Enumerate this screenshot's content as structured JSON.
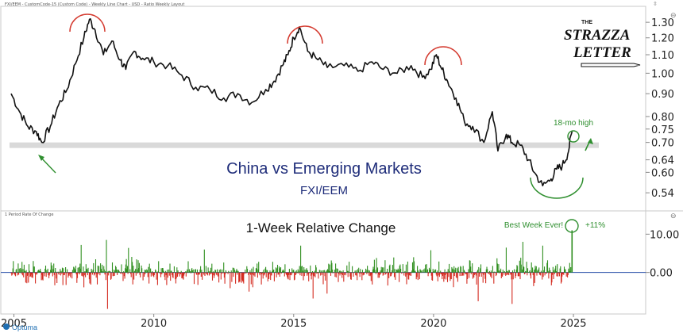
{
  "header": {
    "chart_info": "FXI/EEM - CustomCode-15 (Custom Code) - Weekly Line Chart - USD - Ratio Weekly Layout",
    "lower_panel_info": "1 Period Rate Of Change"
  },
  "branding": {
    "logo_the": "THE",
    "logo_line1": "STRAZZA",
    "logo_line2": "LETTER",
    "watermark": "Optuma"
  },
  "colors": {
    "price_line": "#111111",
    "arc": "#d43a2f",
    "annotation_green": "#2f8f2f",
    "title_blue": "#1f2d7a",
    "bar_up": "#2f8f1f",
    "bar_down": "#d42a1f",
    "support_band": "#d9d9d9"
  },
  "chart_data": [
    {
      "type": "line",
      "title": "China vs Emerging Markets",
      "subtitle": "FXI/EEM",
      "scale": "log",
      "y_ticks": [
        0.54,
        0.6,
        0.64,
        0.7,
        0.75,
        0.8,
        0.9,
        1.0,
        1.1,
        1.2,
        1.3
      ],
      "y_tick_labels": [
        "0.54",
        "0.60",
        "0.64",
        "0.70",
        "0.75",
        "0.80",
        "0.90",
        "1.00",
        "1.10",
        "1.20",
        "1.30"
      ],
      "ylim": [
        0.5,
        1.4
      ],
      "x_ticks": [
        2005,
        2010,
        2015,
        2020,
        2025
      ],
      "x_tick_labels": [
        "2005",
        "2010",
        "2015",
        "2020",
        "2025"
      ],
      "xlim": [
        2004.9,
        2026.6
      ],
      "grid": false,
      "support_level": 0.69,
      "series": [
        {
          "x": [
            2004.9,
            2005.2,
            2005.5,
            2005.8,
            2006.0,
            2006.3,
            2006.6,
            2006.9,
            2007.2,
            2007.5,
            2007.7,
            2007.9,
            2008.2,
            2008.5,
            2008.8,
            2009.0,
            2009.3,
            2009.6,
            2010.0,
            2010.5,
            2011.0,
            2011.5,
            2012.0,
            2012.5,
            2013.0,
            2013.5,
            2014.0,
            2014.3,
            2014.6,
            2014.8,
            2015.0,
            2015.2,
            2015.5,
            2015.8,
            2016.2,
            2016.8,
            2017.3,
            2017.8,
            2018.2,
            2018.7,
            2019.2,
            2019.6,
            2019.9,
            2020.1,
            2020.3,
            2020.5,
            2020.8,
            2021.1,
            2021.4,
            2021.8,
            2022.1,
            2022.3,
            2022.6,
            2022.8,
            2023.1,
            2023.4,
            2023.6,
            2023.9,
            2024.2,
            2024.4,
            2024.6,
            2024.8,
            2024.95
          ],
          "values": [
            0.9,
            0.82,
            0.76,
            0.74,
            0.7,
            0.76,
            0.85,
            0.92,
            1.05,
            1.2,
            1.32,
            1.25,
            1.1,
            1.18,
            1.07,
            1.02,
            1.12,
            1.08,
            1.06,
            1.04,
            0.99,
            0.93,
            0.92,
            0.88,
            0.9,
            0.86,
            0.92,
            0.96,
            1.04,
            1.1,
            1.2,
            1.27,
            1.12,
            1.08,
            1.03,
            1.04,
            1.01,
            1.06,
            1.02,
            1.0,
            1.04,
            0.98,
            1.02,
            1.1,
            1.02,
            0.96,
            0.88,
            0.78,
            0.76,
            0.7,
            0.82,
            0.67,
            0.73,
            0.7,
            0.69,
            0.64,
            0.6,
            0.56,
            0.58,
            0.61,
            0.62,
            0.66,
            0.74
          ]
        }
      ],
      "annotations": [
        "18-mo high"
      ]
    },
    {
      "type": "bar",
      "title": "1-Week Relative Change",
      "y_ticks": [
        0.0,
        10.0
      ],
      "y_tick_labels": [
        "0.00",
        "10.00"
      ],
      "ylim": [
        -10,
        14
      ],
      "grid": false,
      "annotations": [
        "Best Week Ever!",
        "+11%"
      ],
      "highlight": {
        "x": 2024.95,
        "value": 11
      },
      "peaks": [
        {
          "x": 2008.3,
          "value": 8.5
        },
        {
          "x": 2008.35,
          "value": -9.5
        },
        {
          "x": 2007.4,
          "value": 7.2
        },
        {
          "x": 2009.1,
          "value": 6.4
        },
        {
          "x": 2015.25,
          "value": 7.0
        },
        {
          "x": 2015.7,
          "value": -6.8
        },
        {
          "x": 2016.2,
          "value": -5.5
        },
        {
          "x": 2019.9,
          "value": 5.8
        },
        {
          "x": 2021.6,
          "value": -7.5
        },
        {
          "x": 2022.6,
          "value": 6.5
        },
        {
          "x": 2022.8,
          "value": -8.2
        },
        {
          "x": 2023.9,
          "value": 7.0
        },
        {
          "x": 2023.2,
          "value": 8.0
        },
        {
          "x": 2011.8,
          "value": 6.0
        },
        {
          "x": 2013.4,
          "value": -5.0
        }
      ]
    }
  ]
}
